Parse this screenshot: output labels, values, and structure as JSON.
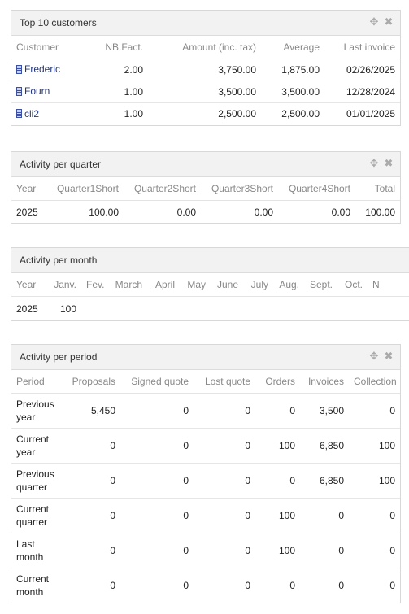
{
  "icons": {
    "move": "move-icon",
    "close": "close-icon",
    "company": "building-icon"
  },
  "top_customers": {
    "title": "Top 10 customers",
    "columns": [
      "Customer",
      "NB.Fact.",
      "Amount (inc. tax)",
      "Average",
      "Last invoice"
    ],
    "rows": [
      {
        "customer": "Frederic",
        "nb": "2.00",
        "amount": "3,750.00",
        "average": "1,875.00",
        "last": "02/26/2025"
      },
      {
        "customer": "Fourn",
        "nb": "1.00",
        "amount": "3,500.00",
        "average": "3,500.00",
        "last": "12/28/2024"
      },
      {
        "customer": "cli2",
        "nb": "1.00",
        "amount": "2,500.00",
        "average": "2,500.00",
        "last": "01/01/2025"
      }
    ]
  },
  "quarter": {
    "title": "Activity per quarter",
    "columns": [
      "Year",
      "Quarter1Short",
      "Quarter2Short",
      "Quarter3Short",
      "Quarter4Short",
      "Total"
    ],
    "rows": [
      {
        "year": "2025",
        "q1": "100.00",
        "q2": "0.00",
        "q3": "0.00",
        "q4": "0.00",
        "total": "100.00"
      }
    ]
  },
  "month": {
    "title": "Activity per month",
    "columns": [
      "Year",
      "Janv.",
      "Fev.",
      "March",
      "April",
      "May",
      "June",
      "July",
      "Aug.",
      "Sept.",
      "Oct.",
      "N"
    ],
    "rows": [
      {
        "year": "2025",
        "jan": "100"
      }
    ]
  },
  "period": {
    "title": "Activity per period",
    "columns": [
      "Period",
      "Proposals",
      "Signed quote",
      "Lost quote",
      "Orders",
      "Invoices",
      "Collection"
    ],
    "rows": [
      {
        "period": "Previous year",
        "proposals": "5,450",
        "signed": "0",
        "lost": "0",
        "orders": "0",
        "invoices": "3,500",
        "collection": "0"
      },
      {
        "period": "Current year",
        "proposals": "0",
        "signed": "0",
        "lost": "0",
        "orders": "100",
        "invoices": "6,850",
        "collection": "100"
      },
      {
        "period": "Previous quarter",
        "proposals": "0",
        "signed": "0",
        "lost": "0",
        "orders": "0",
        "invoices": "6,850",
        "collection": "100"
      },
      {
        "period": "Current quarter",
        "proposals": "0",
        "signed": "0",
        "lost": "0",
        "orders": "100",
        "invoices": "0",
        "collection": "0"
      },
      {
        "period": "Last month",
        "proposals": "0",
        "signed": "0",
        "lost": "0",
        "orders": "100",
        "invoices": "0",
        "collection": "0"
      },
      {
        "period": "Current month",
        "proposals": "0",
        "signed": "0",
        "lost": "0",
        "orders": "0",
        "invoices": "0",
        "collection": "0"
      }
    ]
  }
}
